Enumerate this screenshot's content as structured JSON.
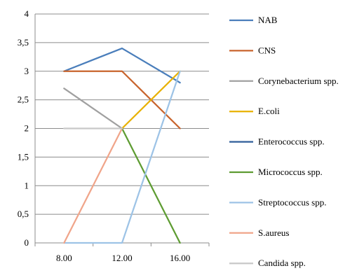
{
  "chart_data": {
    "type": "line",
    "categories": [
      "8.00",
      "12.00",
      "16.00"
    ],
    "ylim": [
      0,
      4
    ],
    "yticks": [
      "0",
      "0,5",
      "1",
      "1,5",
      "2",
      "2,5",
      "3",
      "3,5",
      "4"
    ],
    "ytick_values": [
      0,
      0.5,
      1,
      1.5,
      2,
      2.5,
      3,
      3.5,
      4
    ],
    "grid": true,
    "legend_position": "right",
    "series": [
      {
        "name": "NAB",
        "color": "#4a7ebb",
        "values": [
          3,
          3.4,
          2.8
        ]
      },
      {
        "name": "CNS",
        "color": "#c8642d",
        "values": [
          3,
          3,
          2
        ]
      },
      {
        "name": "Corynebacterium spp.",
        "color": "#a0a0a0",
        "values": [
          2.7,
          2,
          null
        ]
      },
      {
        "name": "E.coli",
        "color": "#e8b100",
        "values": [
          null,
          2,
          3
        ]
      },
      {
        "name": "Enterococcus spp.",
        "color": "#2f5d99",
        "values": [
          null,
          null,
          null
        ]
      },
      {
        "name": "Micrococcus spp.",
        "color": "#5e9c32",
        "values": [
          null,
          2,
          0
        ]
      },
      {
        "name": "Streptococcus spp.",
        "color": "#9dc3e6",
        "values": [
          0,
          0,
          3
        ]
      },
      {
        "name": "S.aureus",
        "color": "#f0a58a",
        "values": [
          0,
          2,
          null
        ]
      },
      {
        "name": "Candida spp.",
        "color": "#c8c8c8",
        "values": [
          2,
          2,
          null
        ]
      }
    ]
  }
}
